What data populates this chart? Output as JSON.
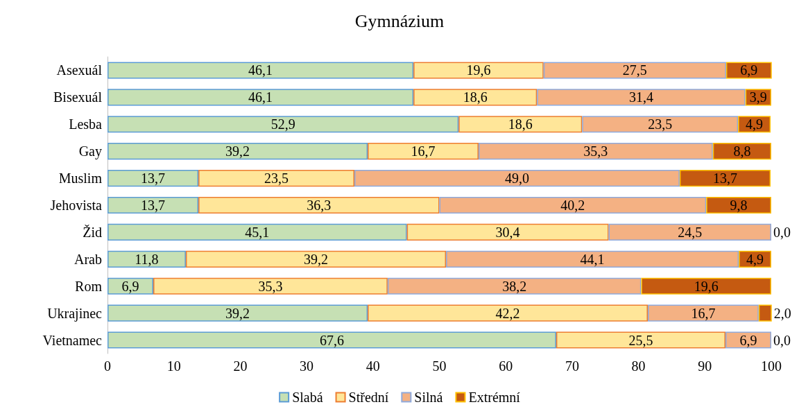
{
  "chart_data": {
    "type": "bar",
    "orientation": "horizontal",
    "stacked": true,
    "title": "Gymnázium",
    "categories": [
      "Asexuál",
      "Bisexuál",
      "Lesba",
      "Gay",
      "Muslim",
      "Jehovista",
      "Žid",
      "Arab",
      "Rom",
      "Ukrajinec",
      "Vietnamec"
    ],
    "series": [
      {
        "name": "Slabá",
        "color": "#c6e0b4",
        "values": [
          46.1,
          46.1,
          52.9,
          39.2,
          13.7,
          13.7,
          45.1,
          11.8,
          6.9,
          39.2,
          67.6
        ],
        "value_labels": [
          "46,1",
          "46,1",
          "52,9",
          "39,2",
          "13,7",
          "13,7",
          "45,1",
          "11,8",
          "6,9",
          "39,2",
          "67,6"
        ]
      },
      {
        "name": "Střední",
        "color": "#ffe699",
        "values": [
          19.6,
          18.6,
          18.6,
          16.7,
          23.5,
          36.3,
          30.4,
          39.2,
          35.3,
          42.2,
          25.5
        ],
        "value_labels": [
          "19,6",
          "18,6",
          "18,6",
          "16,7",
          "23,5",
          "36,3",
          "30,4",
          "39,2",
          "35,3",
          "42,2",
          "25,5"
        ]
      },
      {
        "name": "Silná",
        "color": "#f4b183",
        "values": [
          27.5,
          31.4,
          23.5,
          35.3,
          49.0,
          40.2,
          24.5,
          44.1,
          38.2,
          16.7,
          6.9
        ],
        "value_labels": [
          "27,5",
          "31,4",
          "23,5",
          "35,3",
          "49,0",
          "40,2",
          "24,5",
          "44,1",
          "38,2",
          "16,7",
          "6,9"
        ]
      },
      {
        "name": "Extrémní",
        "color": "#c55a11",
        "values": [
          6.9,
          3.9,
          4.9,
          8.8,
          13.7,
          9.8,
          0.0,
          4.9,
          19.6,
          2.0,
          0.0
        ],
        "value_labels": [
          "6,9",
          "3,9",
          "4,9",
          "8,8",
          "13,7",
          "9,8",
          "0,0",
          "4,9",
          "19,6",
          "2,0",
          "0,0"
        ]
      }
    ],
    "xlim": [
      0,
      100
    ],
    "xticks": [
      0,
      10,
      20,
      30,
      40,
      50,
      60,
      70,
      80,
      90,
      100
    ],
    "grid": false,
    "legend": "bottom"
  }
}
